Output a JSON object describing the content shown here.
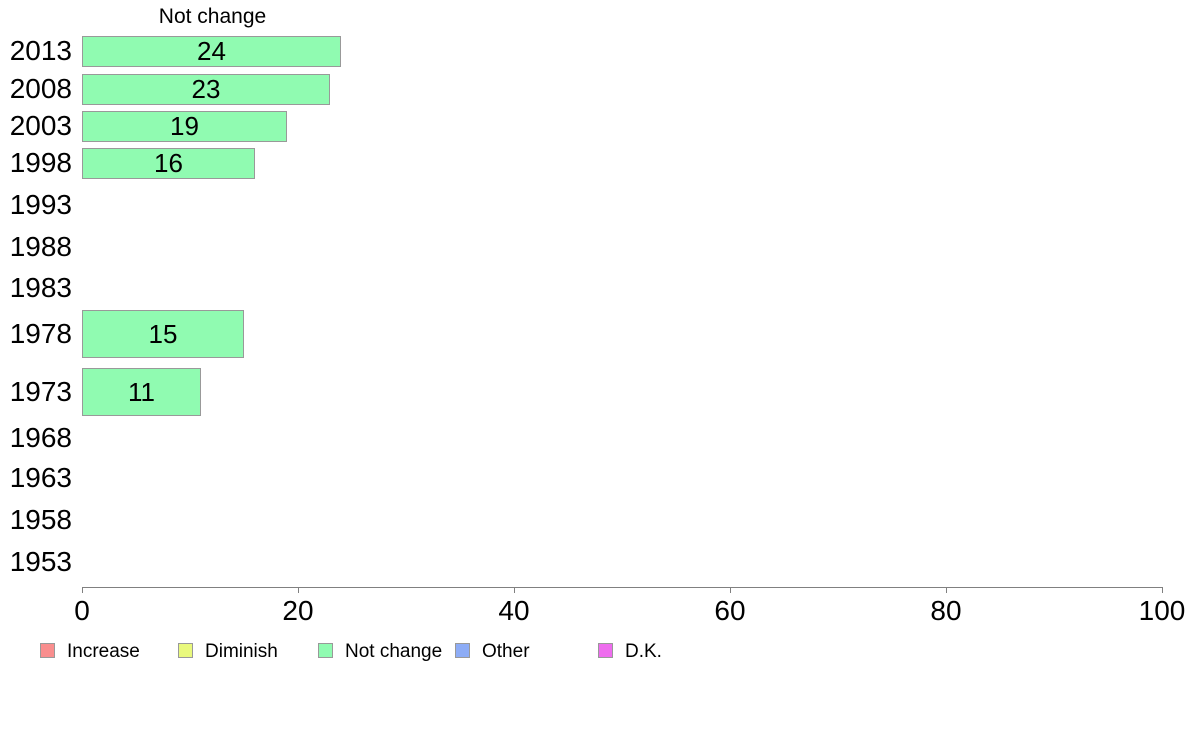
{
  "chart_data": {
    "type": "bar",
    "orientation": "horizontal",
    "title": "Not change",
    "categories": [
      "2013",
      "2008",
      "2003",
      "1998",
      "1993",
      "1988",
      "1983",
      "1978",
      "1973",
      "1968",
      "1963",
      "1958",
      "1953"
    ],
    "series": [
      {
        "name": "Not change",
        "color": "#90FBB1",
        "values": [
          24,
          23,
          19,
          16,
          null,
          null,
          null,
          15,
          11,
          null,
          null,
          null,
          null
        ]
      }
    ],
    "bar_labels": [
      "24",
      "23",
      "19",
      "16",
      "",
      "",
      "",
      "15",
      "11",
      "",
      "",
      "",
      ""
    ],
    "xlabel": "",
    "ylabel": "",
    "xlim": [
      0,
      100
    ],
    "x_ticks": [
      0,
      20,
      40,
      60,
      80,
      100
    ],
    "x_tick_labels": [
      "0",
      "20",
      "40",
      "60",
      "80",
      "100"
    ],
    "grid": "off",
    "legend_position": "bottom",
    "legend": [
      {
        "label": "Increase",
        "color": "#F98E8E"
      },
      {
        "label": "Diminish",
        "color": "#E9F97D"
      },
      {
        "label": "Not change",
        "color": "#90FBB1"
      },
      {
        "label": "Other",
        "color": "#8DACF6"
      },
      {
        "label": "D.K.",
        "color": "#EE6DEE"
      }
    ],
    "colors": {
      "axis": "#808080",
      "bar_border": "#999999",
      "text": "#000000",
      "background": "#ffffff"
    }
  }
}
